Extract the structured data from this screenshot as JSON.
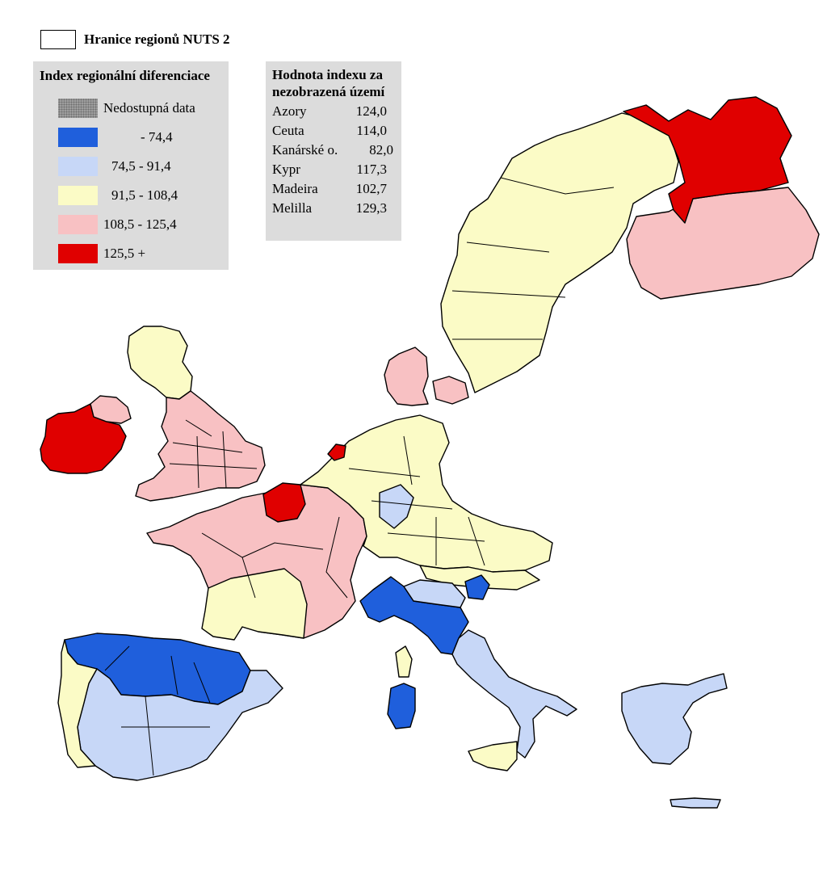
{
  "boundary_legend": {
    "label": "Hranice regionů NUTS 2"
  },
  "index_legend": {
    "title": "Index regionální diferenciace",
    "classes": [
      {
        "label": "Nedostupná data",
        "color": "#9e9e9e",
        "pattern": "stipple"
      },
      {
        "label": "- 74,4",
        "color": "#1f5fdc"
      },
      {
        "label": "74,5 - 91,4",
        "color": "#c7d7f7"
      },
      {
        "label": "91,5 - 108,4",
        "color": "#fbfbc6"
      },
      {
        "label": "108,5 - 125,4",
        "color": "#f8c1c3"
      },
      {
        "label": "125,5 +",
        "color": "#e00000"
      }
    ]
  },
  "values_box": {
    "title_line1": "Hodnota indexu za",
    "title_line2": "nezobrazená území",
    "rows": [
      {
        "name": "Azory",
        "value": "124,0"
      },
      {
        "name": "Ceuta",
        "value": "114,0"
      },
      {
        "name": "Kanárské o.",
        "value": "82,0"
      },
      {
        "name": "Kypr",
        "value": "117,3"
      },
      {
        "name": "Madeira",
        "value": "102,7"
      },
      {
        "name": "Melilla",
        "value": "129,3"
      }
    ]
  },
  "map_classes": {
    "ireland": "#e00000",
    "northern_ireland": "#f8c1c3",
    "scotland": "#fbfbc6",
    "england_wales": "#f8c1c3",
    "paris": "#e00000",
    "amsterdam": "#e00000",
    "france": "#f8c1c3",
    "france_south": "#fbfbc6",
    "benelux_germany": "#fbfbc6",
    "germany_east": "#c7d7f7",
    "denmark": "#f8c1c3",
    "sweden": "#fbfbc6",
    "finland_north": "#e00000",
    "finland_south": "#f8c1c3",
    "austria": "#fbfbc6",
    "north_italy_dark": "#1f5fdc",
    "italy": "#c7d7f7",
    "sardinia": "#1f5fdc",
    "corsica": "#fbfbc6",
    "sicily": "#fbfbc6",
    "spain_north": "#1f5fdc",
    "spain_south": "#c7d7f7",
    "portugal": "#fbfbc6",
    "greece": "#c7d7f7",
    "slovenia": "#1f5fdc"
  }
}
